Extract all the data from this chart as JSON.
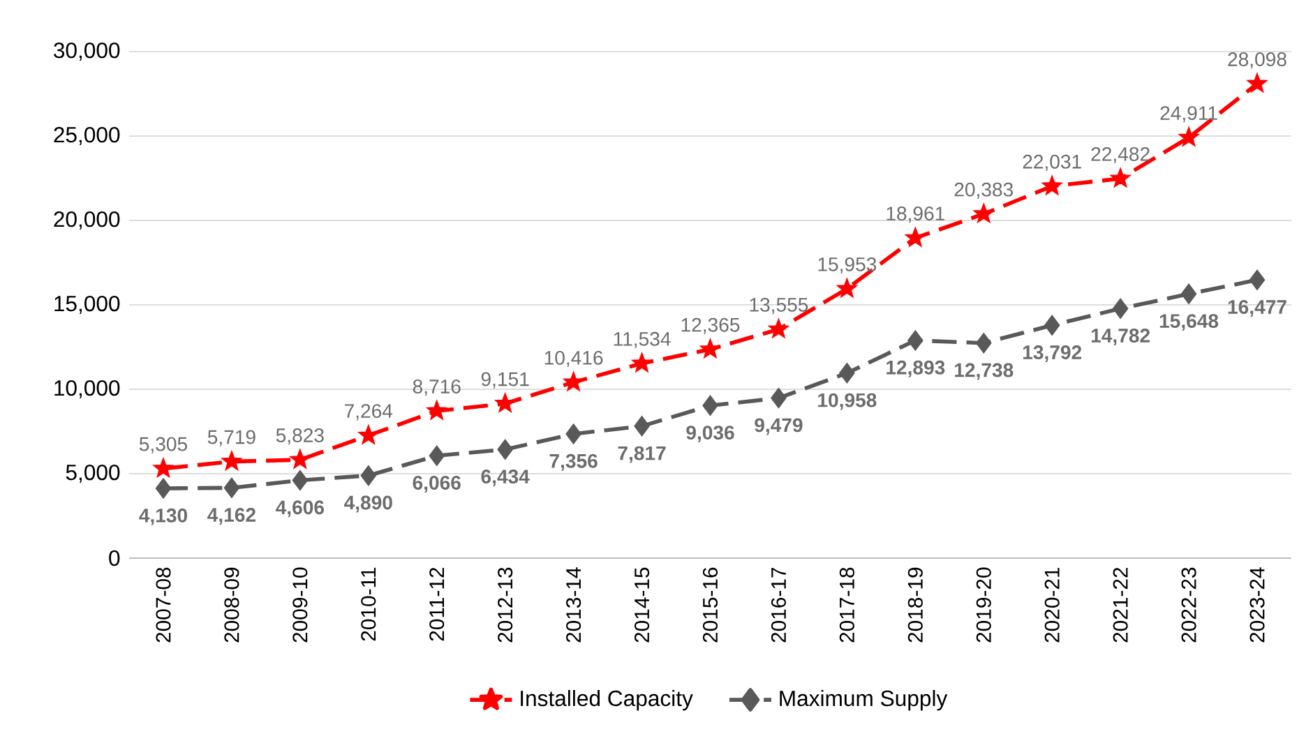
{
  "chart_data": {
    "type": "line",
    "categories": [
      "2007-08",
      "2008-09",
      "2009-10",
      "2010-11",
      "2011-12",
      "2012-13",
      "2013-14",
      "2014-15",
      "2015-16",
      "2016-17",
      "2017-18",
      "2018-19",
      "2019-20",
      "2020-21",
      "2021-22",
      "2022-23",
      "2023-24"
    ],
    "series": [
      {
        "name": "Installed Capacity",
        "color": "#ff0000",
        "marker": "star",
        "line_style": "dashed",
        "values": [
          5305,
          5719,
          5823,
          7264,
          8716,
          9151,
          10416,
          11534,
          12365,
          13555,
          15953,
          18961,
          20383,
          22031,
          22482,
          24911,
          28098
        ],
        "value_labels": [
          "5,305",
          "5,719",
          "5,823",
          "7,264",
          "8,716",
          "9,151",
          "10,416",
          "11,534",
          "12,365",
          "13,555",
          "15,953",
          "18,961",
          "20,383",
          "22,031",
          "22,482",
          "24,911",
          "28,098"
        ]
      },
      {
        "name": "Maximum Supply",
        "color": "#595959",
        "marker": "diamond",
        "line_style": "dashed",
        "values": [
          4130,
          4162,
          4606,
          4890,
          6066,
          6434,
          7356,
          7817,
          9036,
          9479,
          10958,
          12893,
          12738,
          13792,
          14782,
          15648,
          16477
        ],
        "value_labels": [
          "4,130",
          "4,162",
          "4,606",
          "4,890",
          "6,066",
          "6,434",
          "7,356",
          "7,817",
          "9,036",
          "9,479",
          "10,958",
          "12,893",
          "12,738",
          "13,792",
          "14,782",
          "15,648",
          "16,477"
        ]
      }
    ],
    "ylim": [
      0,
      30000
    ],
    "yticks": [
      0,
      {
        "value": 5000,
        "label": "5,000"
      },
      {
        "value": 10000,
        "label": "10,000"
      },
      {
        "value": 15000,
        "label": "15,000"
      },
      {
        "value": 20000,
        "label": "20,000"
      },
      {
        "value": 25000,
        "label": "25,000"
      },
      {
        "value": 30000,
        "label": "30,000"
      }
    ],
    "grid": "y",
    "legend": "bottom"
  }
}
